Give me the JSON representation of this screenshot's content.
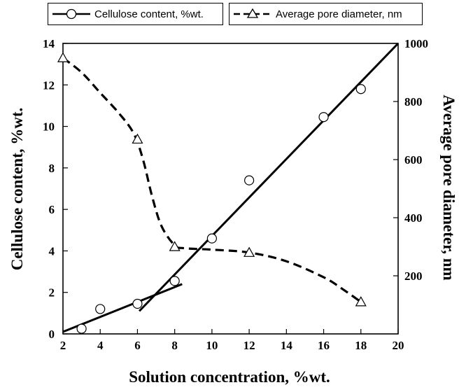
{
  "legend": {
    "cellulose": "Cellulose content, %wt.",
    "pore": "Average pore diameter, nm"
  },
  "chart_data": {
    "type": "line",
    "xlabel": "Solution concentration, %wt.",
    "ylabel_left": "Cellulose content, %wt.",
    "ylabel_right": "Average pore diameter, nm",
    "xlim": [
      2,
      20
    ],
    "ylim_left": [
      0,
      14
    ],
    "ylim_right": [
      0,
      1000
    ],
    "xticks": [
      2,
      4,
      6,
      8,
      10,
      12,
      14,
      16,
      18,
      20
    ],
    "yticks_left": [
      0,
      2,
      4,
      6,
      8,
      10,
      12,
      14
    ],
    "yticks_right": [
      200,
      400,
      600,
      800,
      1000
    ],
    "grid": false,
    "legend_position": "top",
    "series": [
      {
        "name": "Cellulose content, %wt.",
        "axis": "left",
        "marker": "circle",
        "points": [
          [
            3,
            0.25
          ],
          [
            4,
            1.2
          ],
          [
            6,
            1.45
          ],
          [
            8,
            2.55
          ],
          [
            10,
            4.6
          ],
          [
            12,
            7.4
          ],
          [
            16,
            10.45
          ],
          [
            18,
            11.8
          ]
        ]
      },
      {
        "name": "Average pore diameter, nm",
        "axis": "right",
        "marker": "triangle",
        "points": [
          [
            2,
            950
          ],
          [
            6,
            670
          ],
          [
            8,
            300
          ],
          [
            12,
            280
          ],
          [
            18,
            110
          ]
        ]
      }
    ],
    "fit_lines": [
      {
        "series": "Cellulose content, %wt.",
        "style": "solid",
        "from": [
          2,
          0.1
        ],
        "to": [
          8.4,
          2.4
        ]
      },
      {
        "series": "Cellulose content, %wt.",
        "style": "solid",
        "from": [
          6.1,
          1.1
        ],
        "to": [
          20,
          14.0
        ]
      }
    ],
    "trend_curve": {
      "series": "Average pore diameter, nm",
      "style": "dashed",
      "points": [
        [
          2,
          950
        ],
        [
          3,
          900
        ],
        [
          4,
          830
        ],
        [
          5,
          760
        ],
        [
          5.8,
          690
        ],
        [
          6.3,
          600
        ],
        [
          6.8,
          470
        ],
        [
          7.3,
          370
        ],
        [
          8,
          305
        ],
        [
          8.5,
          295
        ],
        [
          10,
          290
        ],
        [
          12,
          280
        ],
        [
          14,
          250
        ],
        [
          16,
          195
        ],
        [
          17,
          155
        ],
        [
          18,
          110
        ]
      ]
    }
  }
}
